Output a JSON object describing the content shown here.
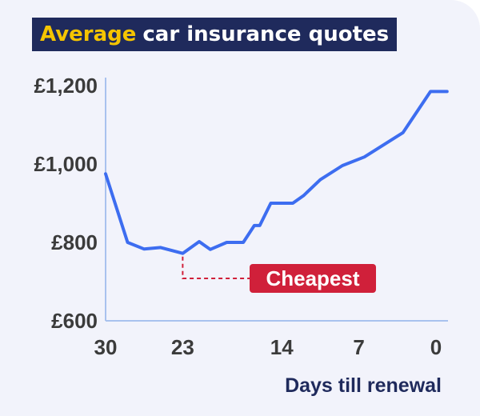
{
  "chart_data": {
    "type": "line",
    "title_highlight": "Average",
    "title_rest": "car insurance quotes",
    "xlabel": "Days till renewal",
    "ylabel": "",
    "xlim": [
      30,
      0
    ],
    "ylim": [
      600,
      1200
    ],
    "x_ticks": [
      30,
      23,
      14,
      7,
      0
    ],
    "y_ticks": [
      {
        "value": 1200,
        "label": "£1,200"
      },
      {
        "value": 1000,
        "label": "£1,000"
      },
      {
        "value": 800,
        "label": "£800"
      },
      {
        "value": 600,
        "label": "£600"
      }
    ],
    "series": [
      {
        "color": "#3d6df0",
        "x": [
          30,
          28,
          26.5,
          25,
          23,
          21.5,
          20.5,
          19,
          17.5,
          16.5,
          16,
          15,
          13,
          12,
          10.5,
          8.5,
          6.5,
          3,
          0.5,
          -1
        ],
        "y": [
          975,
          800,
          783,
          787,
          772,
          802,
          782,
          800,
          800,
          843,
          843,
          900,
          900,
          920,
          960,
          996,
          1018,
          1080,
          1185,
          1185
        ]
      }
    ],
    "annotation": {
      "label": "Cheapest",
      "x": 23,
      "y": 772,
      "color": "#d0203a"
    },
    "grid": false,
    "axis_color": "#a9c2ee"
  }
}
